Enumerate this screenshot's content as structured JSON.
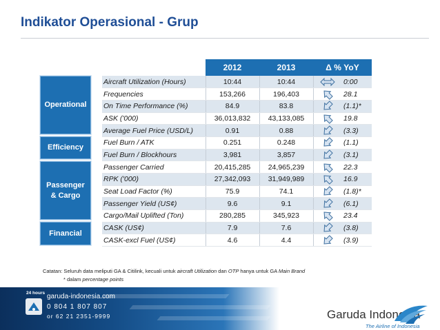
{
  "page": {
    "title": "Indikator Operasional - Grup"
  },
  "categories": [
    {
      "label_line1": "Operational",
      "label_line2": ""
    },
    {
      "label_line1": "Efficiency",
      "label_line2": ""
    },
    {
      "label_line1": "Passenger",
      "label_line2": "& Cargo"
    },
    {
      "label_line1": "Financial",
      "label_line2": ""
    }
  ],
  "table": {
    "headers": {
      "y2012": "2012",
      "y2013": "2013",
      "delta": "Δ % YoY"
    },
    "rows": [
      {
        "label": "Aircraft Utilization (Hours)",
        "v2012": "10:44",
        "v2013": "10:44",
        "arrow": "flat",
        "yoy": "0:00"
      },
      {
        "label": "Frequencies",
        "v2012": "153,266",
        "v2013": "196,403",
        "arrow": "up",
        "yoy": "28.1"
      },
      {
        "label": "On Time Performance (%)",
        "v2012": "84.9",
        "v2013": "83.8",
        "arrow": "down",
        "yoy": "(1.1)*"
      },
      {
        "label": "ASK ('000)",
        "v2012": "36,013,832",
        "v2013": "43,133,085",
        "arrow": "up",
        "yoy": "19.8"
      },
      {
        "label": "Average Fuel Price (USD/L)",
        "v2012": "0.91",
        "v2013": "0.88",
        "arrow": "down",
        "yoy": "(3.3)"
      },
      {
        "label": "Fuel Burn / ATK",
        "v2012": "0.251",
        "v2013": "0.248",
        "arrow": "down",
        "yoy": "(1.1)"
      },
      {
        "label": "Fuel Burn / Blockhours",
        "v2012": "3,981",
        "v2013": "3,857",
        "arrow": "down",
        "yoy": "(3.1)"
      },
      {
        "label": "Passenger Carried",
        "v2012": "20,415,285",
        "v2013": "24,965,239",
        "arrow": "up",
        "yoy": "22.3"
      },
      {
        "label": "RPK ('000)",
        "v2012": "27,342,093",
        "v2013": "31,949,989",
        "arrow": "up",
        "yoy": "16.9"
      },
      {
        "label": "Seat Load Factor (%)",
        "v2012": "75.9",
        "v2013": "74.1",
        "arrow": "down",
        "yoy": "(1.8)*"
      },
      {
        "label": "Passenger Yield (US¢)",
        "v2012": "9.6",
        "v2013": "9.1",
        "arrow": "down",
        "yoy": "(6.1)"
      },
      {
        "label": "Cargo/Mail Uplifted (Ton)",
        "v2012": "280,285",
        "v2013": "345,923",
        "arrow": "up",
        "yoy": "23.4"
      },
      {
        "label": "CASK (US¢)",
        "v2012": "7.9",
        "v2013": "7.6",
        "arrow": "down",
        "yoy": "(3.8)"
      },
      {
        "label": "CASK-excl Fuel (US¢)",
        "v2012": "4.6",
        "v2013": "4.4",
        "arrow": "down",
        "yoy": "(3.9)"
      }
    ]
  },
  "notes": {
    "line1_prefix": "Catatan:  Seluruh data meliputi GA & Citilink, kecuali untuk ",
    "line1_em1": "aircraft Utilization",
    "line1_mid": " dan ",
    "line1_em2": "OTP",
    "line1_mid2": " hanya untuk GA ",
    "line1_em3": "Main Brand",
    "line2_prefix": "* dalam ",
    "line2_em": "percentage points"
  },
  "footer": {
    "hours_label": "24 hours",
    "website": "garuda-indonesia.com",
    "phone1": "0 804 1 807 807",
    "phone2": "or 62 21 2351-9999",
    "brand": "Garuda Indonesia",
    "tagline": "The Airline of Indonesia"
  },
  "colors": {
    "accent": "#1d6fb2",
    "title": "#1f4e96",
    "shade": "#dde6ef",
    "arrow_fill": "#d6e3f1",
    "arrow_stroke": "#3c6e9e"
  }
}
